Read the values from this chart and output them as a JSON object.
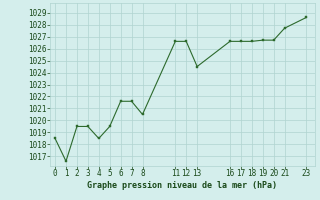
{
  "x": [
    0,
    1,
    2,
    3,
    4,
    5,
    6,
    7,
    8,
    11,
    12,
    13,
    16,
    17,
    18,
    19,
    20,
    21,
    23
  ],
  "y": [
    1018.5,
    1016.6,
    1019.5,
    1019.5,
    1018.5,
    1019.5,
    1021.6,
    1021.6,
    1020.5,
    1026.6,
    1026.6,
    1024.5,
    1026.6,
    1026.6,
    1026.6,
    1026.7,
    1026.7,
    1027.7,
    1028.6
  ],
  "xticks": [
    0,
    1,
    2,
    3,
    4,
    5,
    6,
    7,
    8,
    11,
    12,
    13,
    16,
    17,
    18,
    19,
    20,
    21,
    23
  ],
  "yticks": [
    1017,
    1018,
    1019,
    1020,
    1021,
    1022,
    1023,
    1024,
    1025,
    1026,
    1027,
    1028,
    1029
  ],
  "ylim": [
    1016.2,
    1029.8
  ],
  "xlim": [
    -0.5,
    23.8
  ],
  "line_color": "#2d6a2d",
  "marker_color": "#2d6a2d",
  "bg_color": "#d4eeec",
  "grid_color": "#b0d4d0",
  "xlabel": "Graphe pression niveau de la mer (hPa)",
  "xlabel_color": "#1a4a1a",
  "xlabel_fontsize": 6.0,
  "tick_fontsize": 5.5,
  "tick_color": "#1a4a1a"
}
